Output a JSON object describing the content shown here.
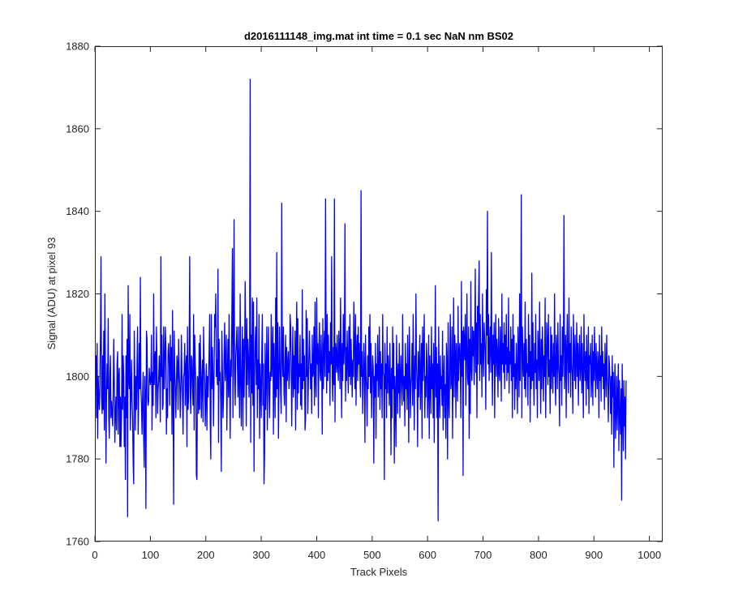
{
  "chart_data": {
    "type": "line",
    "title": "d2016111148_img.mat int time = 0.1 sec  NaN nm BS02",
    "xlabel": "Track Pixels",
    "ylabel": "Signal (ADU) at pixel 93",
    "xlim": [
      0,
      1024
    ],
    "ylim": [
      1760,
      1880
    ],
    "xticks": [
      0,
      100,
      200,
      300,
      400,
      500,
      600,
      700,
      800,
      900,
      1000
    ],
    "yticks": [
      1760,
      1780,
      1800,
      1820,
      1840,
      1860,
      1880
    ],
    "grid": false,
    "series": [
      {
        "color": "#0000ff",
        "x_start": 1,
        "x_step": 1,
        "values": [
          1798,
          1805,
          1790,
          1808,
          1785,
          1800,
          1795,
          1792,
          1798,
          1810,
          1829,
          1795,
          1791,
          1805,
          1792,
          1811,
          1787,
          1820,
          1801,
          1779,
          1795,
          1803,
          1797,
          1814,
          1790,
          1785,
          1800,
          1805,
          1790,
          1794,
          1791,
          1788,
          1796,
          1809,
          1799,
          1784,
          1791,
          1795,
          1787,
          1803,
          1806,
          1786,
          1800,
          1802,
          1783,
          1795,
          1783,
          1790,
          1815,
          1792,
          1805,
          1800,
          1783,
          1795,
          1775,
          1805,
          1790,
          1809,
          1766,
          1822,
          1800,
          1797,
          1815,
          1787,
          1796,
          1804,
          1794,
          1790,
          1779,
          1774,
          1811,
          1799,
          1787,
          1800,
          1792,
          1803,
          1812,
          1786,
          1795,
          1808,
          1797,
          1824,
          1797,
          1793,
          1786,
          1795,
          1801,
          1785,
          1778,
          1800,
          1795,
          1768,
          1811,
          1809,
          1795,
          1793,
          1794,
          1802,
          1800,
          1798,
          1799,
          1810,
          1787,
          1801,
          1793,
          1820,
          1798,
          1804,
          1806,
          1790,
          1812,
          1803,
          1791,
          1797,
          1799,
          1805,
          1800,
          1789,
          1829,
          1800,
          1810,
          1792,
          1793,
          1812,
          1797,
          1803,
          1812,
          1807,
          1786,
          1797,
          1790,
          1806,
          1808,
          1803,
          1793,
          1810,
          1799,
          1807,
          1786,
          1816,
          1796,
          1769,
          1811,
          1802,
          1797,
          1790,
          1798,
          1805,
          1803,
          1792,
          1809,
          1801,
          1798,
          1790,
          1797,
          1810,
          1800,
          1795,
          1786,
          1800,
          1801,
          1808,
          1793,
          1802,
          1805,
          1783,
          1812,
          1792,
          1795,
          1805,
          1829,
          1796,
          1791,
          1805,
          1804,
          1797,
          1793,
          1815,
          1787,
          1810,
          1803,
          1799,
          1776,
          1775,
          1800,
          1799,
          1791,
          1808,
          1792,
          1810,
          1801,
          1790,
          1799,
          1804,
          1789,
          1812,
          1803,
          1799,
          1788,
          1795,
          1803,
          1787,
          1800,
          1795,
          1800,
          1806,
          1815,
          1789,
          1780,
          1815,
          1797,
          1807,
          1800,
          1788,
          1801,
          1815,
          1812,
          1820,
          1800,
          1804,
          1798,
          1826,
          1784,
          1809,
          1799,
          1801,
          1793,
          1777,
          1811,
          1801,
          1790,
          1795,
          1805,
          1813,
          1799,
          1803,
          1810,
          1787,
          1801,
          1809,
          1795,
          1815,
          1799,
          1785,
          1804,
          1800,
          1815,
          1831,
          1790,
          1811,
          1838,
          1800,
          1793,
          1805,
          1808,
          1812,
          1803,
          1795,
          1812,
          1799,
          1790,
          1820,
          1801,
          1788,
          1801,
          1812,
          1787,
          1809,
          1795,
          1805,
          1823,
          1808,
          1788,
          1814,
          1798,
          1809,
          1805,
          1795,
          1803,
          1872,
          1784,
          1810,
          1796,
          1819,
          1793,
          1818,
          1777,
          1800,
          1808,
          1812,
          1798,
          1819,
          1790,
          1804,
          1797,
          1815,
          1785,
          1803,
          1797,
          1790,
          1806,
          1815,
          1793,
          1803,
          1774,
          1781,
          1808,
          1792,
          1800,
          1812,
          1787,
          1803,
          1812,
          1796,
          1790,
          1801,
          1799,
          1815,
          1800,
          1805,
          1812,
          1786,
          1808,
          1800,
          1790,
          1819,
          1795,
          1830,
          1797,
          1813,
          1785,
          1798,
          1812,
          1803,
          1796,
          1791,
          1842,
          1804,
          1800,
          1812,
          1796,
          1793,
          1804,
          1810,
          1789,
          1807,
          1799,
          1803,
          1806,
          1797,
          1800,
          1815,
          1812,
          1803,
          1788,
          1801,
          1812,
          1795,
          1805,
          1797,
          1811,
          1787,
          1806,
          1818,
          1792,
          1814,
          1796,
          1803,
          1800,
          1810,
          1793,
          1803,
          1792,
          1821,
          1797,
          1809,
          1799,
          1805,
          1787,
          1790,
          1816,
          1800,
          1814,
          1791,
          1798,
          1805,
          1811,
          1804,
          1797,
          1803,
          1791,
          1810,
          1800,
          1801,
          1812,
          1793,
          1818,
          1799,
          1795,
          1819,
          1803,
          1808,
          1790,
          1806,
          1813,
          1801,
          1799,
          1810,
          1803,
          1786,
          1814,
          1797,
          1806,
          1811,
          1800,
          1843,
          1808,
          1796,
          1815,
          1799,
          1810,
          1801,
          1806,
          1793,
          1813,
          1803,
          1829,
          1800,
          1794,
          1807,
          1798,
          1843,
          1789,
          1808,
          1806,
          1801,
          1810,
          1803,
          1799,
          1811,
          1806,
          1797,
          1819,
          1805,
          1790,
          1808,
          1799,
          1815,
          1803,
          1808,
          1837,
          1794,
          1807,
          1799,
          1811,
          1803,
          1796,
          1812,
          1800,
          1815,
          1798,
          1809,
          1803,
          1795,
          1804,
          1800,
          1818,
          1808,
          1797,
          1815,
          1793,
          1806,
          1810,
          1799,
          1812,
          1803,
          1808,
          1800,
          1795,
          1845,
          1800,
          1806,
          1791,
          1799,
          1808,
          1802,
          1784,
          1810,
          1800,
          1797,
          1788,
          1805,
          1797,
          1812,
          1800,
          1815,
          1796,
          1808,
          1790,
          1799,
          1805,
          1802,
          1779,
          1800,
          1795,
          1808,
          1785,
          1803,
          1799,
          1810,
          1795,
          1800,
          1812,
          1792,
          1806,
          1797,
          1803,
          1790,
          1815,
          1801,
          1800,
          1775,
          1808,
          1797,
          1803,
          1790,
          1812,
          1796,
          1805,
          1800,
          1793,
          1808,
          1799,
          1781,
          1802,
          1790,
          1812,
          1797,
          1808,
          1779,
          1800,
          1795,
          1783,
          1810,
          1800,
          1791,
          1803,
          1796,
          1808,
          1790,
          1800,
          1805,
          1797,
          1793,
          1815,
          1799,
          1794,
          1800,
          1788,
          1808,
          1797,
          1803,
          1792,
          1810,
          1800,
          1784,
          1812,
          1805,
          1790,
          1798,
          1800,
          1808,
          1793,
          1815,
          1800,
          1787,
          1805,
          1797,
          1820,
          1803,
          1798,
          1783,
          1806,
          1795,
          1803,
          1810,
          1792,
          1800,
          1808,
          1785,
          1812,
          1799,
          1806,
          1815,
          1790,
          1800,
          1795,
          1808,
          1803,
          1790,
          1797,
          1810,
          1785,
          1805,
          1800,
          1791,
          1812,
          1797,
          1803,
          1790,
          1808,
          1784,
          1800,
          1822,
          1795,
          1807,
          1790,
          1803,
          1765,
          1812,
          1799,
          1790,
          1805,
          1797,
          1800,
          1793,
          1811,
          1787,
          1800,
          1805,
          1790,
          1798,
          1785,
          1808,
          1803,
          1780,
          1813,
          1795,
          1790,
          1804,
          1815,
          1797,
          1799,
          1812,
          1785,
          1802,
          1819,
          1795,
          1810,
          1806,
          1790,
          1808,
          1800,
          1794,
          1817,
          1799,
          1805,
          1808,
          1803,
          1790,
          1823,
          1800,
          1811,
          1776,
          1812,
          1809,
          1804,
          1815,
          1793,
          1806,
          1820,
          1800,
          1798,
          1812,
          1785,
          1809,
          1791,
          1823,
          1802,
          1799,
          1812,
          1805,
          1811,
          1798,
          1808,
          1826,
          1801,
          1813,
          1790,
          1817,
          1803,
          1819,
          1828,
          1799,
          1815,
          1803,
          1808,
          1795,
          1820,
          1806,
          1800,
          1813,
          1809,
          1805,
          1792,
          1821,
          1810,
          1840,
          1803,
          1815,
          1799,
          1808,
          1812,
          1801,
          1830,
          1806,
          1793,
          1810,
          1803,
          1813,
          1790,
          1808,
          1815,
          1800,
          1809,
          1805,
          1795,
          1814,
          1801,
          1799,
          1812,
          1806,
          1794,
          1820,
          1803,
          1808,
          1801,
          1813,
          1797,
          1810,
          1803,
          1815,
          1799,
          1807,
          1801,
          1819,
          1796,
          1806,
          1803,
          1812,
          1799,
          1809,
          1790,
          1815,
          1800,
          1810,
          1792,
          1803,
          1797,
          1808,
          1801,
          1791,
          1812,
          1806,
          1795,
          1820,
          1799,
          1810,
          1844,
          1790,
          1812,
          1804,
          1800,
          1808,
          1797,
          1818,
          1795,
          1809,
          1801,
          1803,
          1793,
          1815,
          1800,
          1810,
          1789,
          1806,
          1797,
          1825,
          1799,
          1813,
          1800,
          1793,
          1808,
          1801,
          1815,
          1797,
          1804,
          1790,
          1811,
          1806,
          1799,
          1818,
          1803,
          1791,
          1809,
          1797,
          1812,
          1806,
          1794,
          1805,
          1800,
          1819,
          1790,
          1803,
          1813,
          1808,
          1798,
          1815,
          1800,
          1804,
          1791,
          1812,
          1797,
          1810,
          1803,
          1796,
          1808,
          1800,
          1820,
          1799,
          1793,
          1810,
          1806,
          1797,
          1813,
          1803,
          1800,
          1788,
          1815,
          1799,
          1805,
          1793,
          1812,
          1800,
          1808,
          1839,
          1797,
          1803,
          1810,
          1790,
          1806,
          1815,
          1802,
          1796,
          1819,
          1801,
          1808,
          1795,
          1812,
          1803,
          1800,
          1791,
          1815,
          1806,
          1799,
          1810,
          1797,
          1803,
          1813,
          1800,
          1808,
          1793,
          1805,
          1810,
          1799,
          1802,
          1812,
          1796,
          1808,
          1800,
          1790,
          1815,
          1803,
          1799,
          1806,
          1793,
          1810,
          1800,
          1797,
          1812,
          1791,
          1805,
          1803,
          1808,
          1795,
          1800,
          1810,
          1793,
          1806,
          1799,
          1812,
          1803,
          1795,
          1808,
          1801,
          1797,
          1806,
          1803,
          1790,
          1810,
          1799,
          1805,
          1794,
          1812,
          1800,
          1806,
          1797,
          1803,
          1792,
          1808,
          1801,
          1795,
          1810,
          1800,
          1797,
          1789,
          1805,
          1803,
          1798,
          1791,
          1800,
          1786,
          1805,
          1795,
          1801,
          1778,
          1797,
          1803,
          1785,
          1792,
          1800,
          1787,
          1795,
          1803,
          1782,
          1799,
          1790,
          1786,
          1797,
          1770,
          1803,
          1792,
          1782,
          1799,
          1788,
          1795,
          1780,
          1799
        ]
      }
    ]
  }
}
